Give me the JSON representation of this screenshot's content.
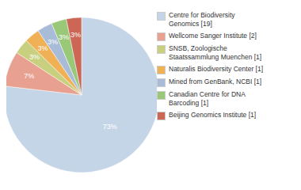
{
  "chart_data": {
    "type": "pie",
    "categories": [
      "Centre for Biodiversity\nGenomics [19]",
      "Wellcome Sanger Institute [2]",
      "SNSB, Zoologische\nStaatssammlung Muenchen [1]",
      "Naturalis Biodiversity Center [1]",
      "Mined from GenBank, NCBI [1]",
      "Canadian Centre for DNA\nBarcoding [1]",
      "Beijing Genomics Institute [1]"
    ],
    "values": [
      73,
      7,
      3,
      3,
      3,
      3,
      3
    ],
    "value_labels": [
      "73%",
      "7%",
      "3%",
      "3%",
      "3%",
      "3%",
      "3%"
    ],
    "data_labels": true,
    "colors": [
      "#c5d5e8",
      "#e8a090",
      "#c8d080",
      "#f0b055",
      "#a8bcd8",
      "#98c878",
      "#cc6655"
    ]
  }
}
